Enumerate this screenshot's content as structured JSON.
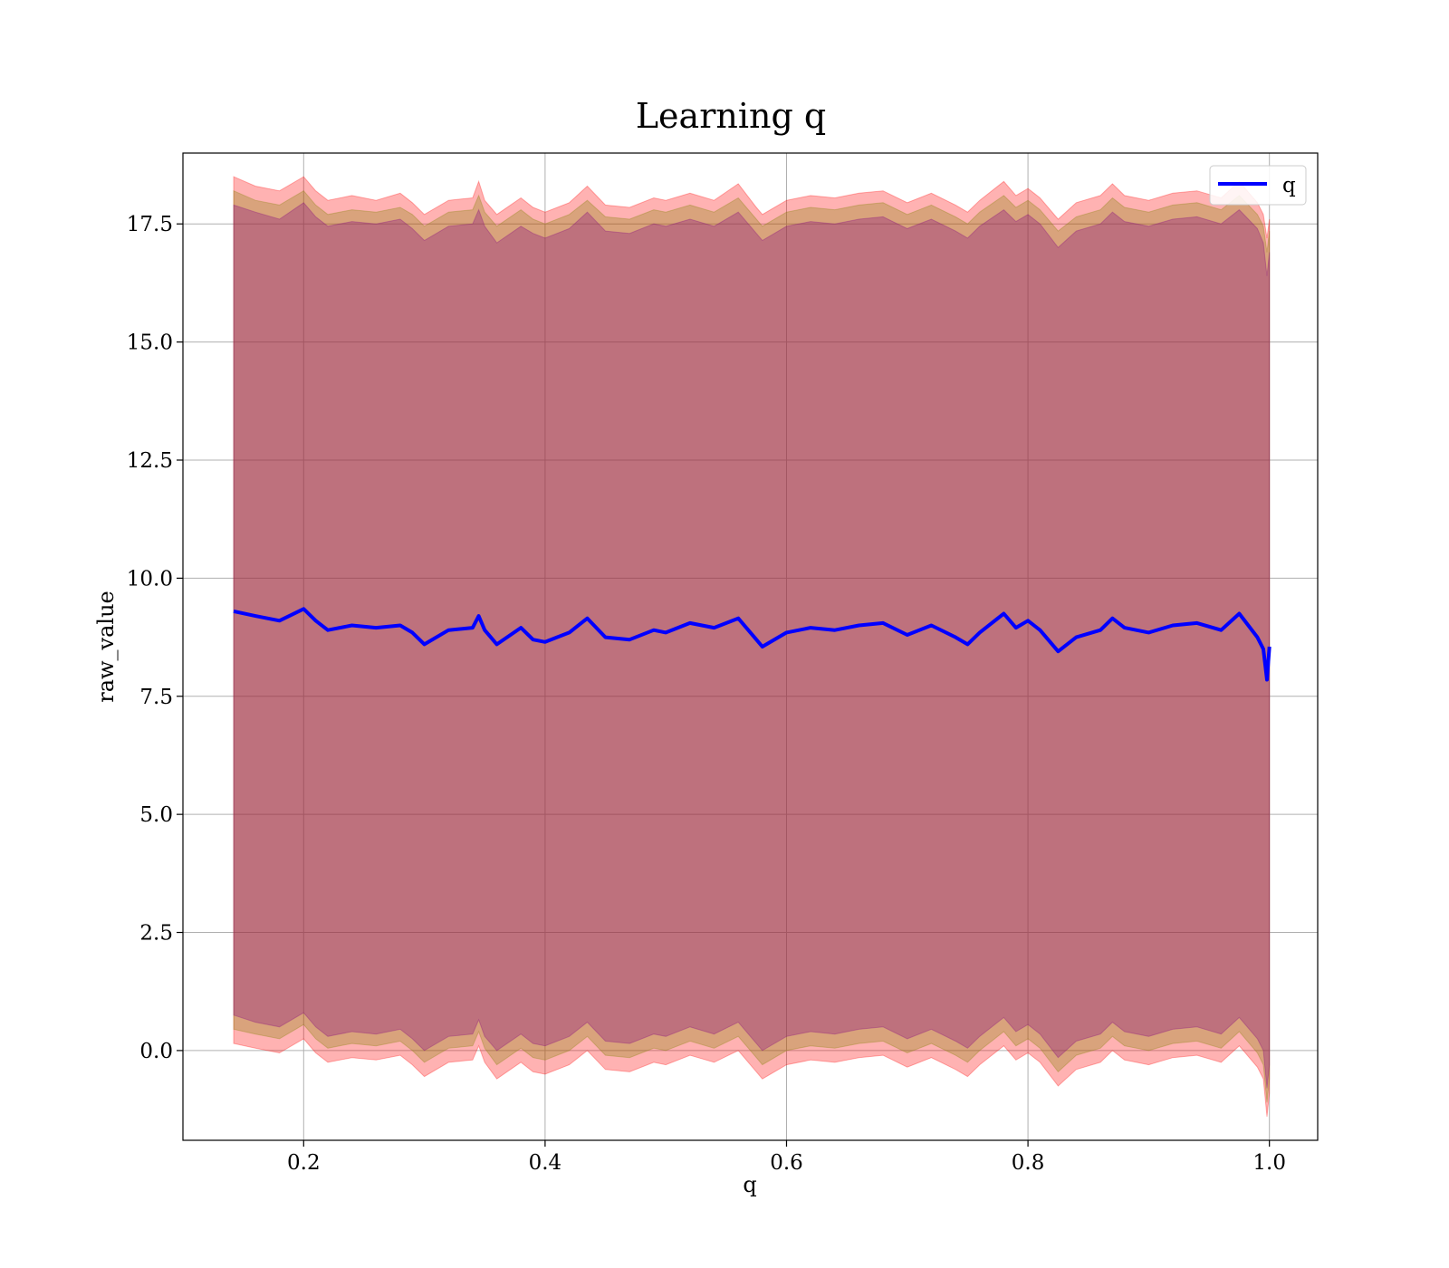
{
  "chart_data": {
    "type": "line",
    "title": "Learning q",
    "xlabel": "q",
    "ylabel": "raw_value",
    "xlim": [
      0.1,
      1.04
    ],
    "ylim": [
      -1.9,
      19.0
    ],
    "x_ticks": [
      0.2,
      0.4,
      0.6,
      0.8,
      1.0
    ],
    "x_tick_labels": [
      "0.2",
      "0.4",
      "0.6",
      "0.8",
      "1.0"
    ],
    "y_ticks": [
      0.0,
      2.5,
      5.0,
      7.5,
      10.0,
      12.5,
      15.0,
      17.5
    ],
    "y_tick_labels": [
      "0.0",
      "2.5",
      "5.0",
      "7.5",
      "10.0",
      "12.5",
      "15.0",
      "17.5"
    ],
    "grid": true,
    "legend_position": "top-right",
    "series": [
      {
        "name": "q",
        "color": "#0000ff",
        "x": [
          0.142,
          0.16,
          0.18,
          0.2,
          0.21,
          0.22,
          0.24,
          0.26,
          0.28,
          0.29,
          0.3,
          0.32,
          0.34,
          0.345,
          0.35,
          0.36,
          0.38,
          0.39,
          0.4,
          0.42,
          0.435,
          0.45,
          0.47,
          0.49,
          0.5,
          0.52,
          0.54,
          0.56,
          0.575,
          0.58,
          0.6,
          0.62,
          0.64,
          0.66,
          0.68,
          0.7,
          0.72,
          0.74,
          0.75,
          0.76,
          0.78,
          0.79,
          0.8,
          0.81,
          0.825,
          0.84,
          0.86,
          0.87,
          0.88,
          0.9,
          0.92,
          0.94,
          0.96,
          0.975,
          0.99,
          0.995,
          0.998,
          1.0
        ],
        "y": [
          9.3,
          9.2,
          9.1,
          9.35,
          9.1,
          8.9,
          9.0,
          8.95,
          9.0,
          8.85,
          8.6,
          8.9,
          8.95,
          9.2,
          8.9,
          8.6,
          8.95,
          8.7,
          8.65,
          8.85,
          9.15,
          8.75,
          8.7,
          8.9,
          8.85,
          9.05,
          8.95,
          9.15,
          8.7,
          8.55,
          8.85,
          8.95,
          8.9,
          9.0,
          9.05,
          8.8,
          9.0,
          8.75,
          8.6,
          8.85,
          9.25,
          8.95,
          9.1,
          8.9,
          8.45,
          8.75,
          8.9,
          9.15,
          8.95,
          8.85,
          9.0,
          9.05,
          8.9,
          9.25,
          8.75,
          8.5,
          7.85,
          8.55
        ]
      }
    ],
    "bands": [
      {
        "color": "#ff0000",
        "opacity": 0.3,
        "x": [
          0.142,
          0.16,
          0.18,
          0.2,
          0.21,
          0.22,
          0.24,
          0.26,
          0.28,
          0.29,
          0.3,
          0.32,
          0.34,
          0.345,
          0.35,
          0.36,
          0.38,
          0.39,
          0.4,
          0.42,
          0.435,
          0.45,
          0.47,
          0.49,
          0.5,
          0.52,
          0.54,
          0.56,
          0.575,
          0.58,
          0.6,
          0.62,
          0.64,
          0.66,
          0.68,
          0.7,
          0.72,
          0.74,
          0.75,
          0.76,
          0.78,
          0.79,
          0.8,
          0.81,
          0.825,
          0.84,
          0.86,
          0.87,
          0.88,
          0.9,
          0.92,
          0.94,
          0.96,
          0.975,
          0.99,
          0.995,
          0.998,
          1.0
        ],
        "upper": [
          18.5,
          18.3,
          18.2,
          18.5,
          18.2,
          18.0,
          18.1,
          18.0,
          18.15,
          17.95,
          17.7,
          18.0,
          18.05,
          18.4,
          18.0,
          17.7,
          18.05,
          17.85,
          17.75,
          17.95,
          18.3,
          17.9,
          17.85,
          18.05,
          18.0,
          18.15,
          18.0,
          18.35,
          17.85,
          17.7,
          18.0,
          18.1,
          18.05,
          18.15,
          18.2,
          17.95,
          18.15,
          17.9,
          17.75,
          18.0,
          18.4,
          18.1,
          18.25,
          18.05,
          17.6,
          17.95,
          18.1,
          18.35,
          18.1,
          18.0,
          18.15,
          18.2,
          18.05,
          18.4,
          17.95,
          17.7,
          17.2,
          17.6
        ],
        "lower": [
          0.15,
          0.05,
          -0.05,
          0.25,
          -0.05,
          -0.25,
          -0.15,
          -0.2,
          -0.1,
          -0.3,
          -0.55,
          -0.25,
          -0.2,
          0.1,
          -0.25,
          -0.6,
          -0.25,
          -0.45,
          -0.5,
          -0.3,
          0.0,
          -0.4,
          -0.45,
          -0.25,
          -0.3,
          -0.1,
          -0.25,
          0.0,
          -0.45,
          -0.6,
          -0.3,
          -0.2,
          -0.25,
          -0.15,
          -0.1,
          -0.35,
          -0.15,
          -0.4,
          -0.55,
          -0.3,
          0.1,
          -0.2,
          -0.05,
          -0.25,
          -0.75,
          -0.4,
          -0.25,
          0.0,
          -0.2,
          -0.3,
          -0.15,
          -0.1,
          -0.25,
          0.1,
          -0.35,
          -0.6,
          -1.4,
          -0.9
        ]
      },
      {
        "color": "#808000",
        "opacity": 0.3,
        "x": [
          0.142,
          0.16,
          0.18,
          0.2,
          0.21,
          0.22,
          0.24,
          0.26,
          0.28,
          0.29,
          0.3,
          0.32,
          0.34,
          0.345,
          0.35,
          0.36,
          0.38,
          0.39,
          0.4,
          0.42,
          0.435,
          0.45,
          0.47,
          0.49,
          0.5,
          0.52,
          0.54,
          0.56,
          0.575,
          0.58,
          0.6,
          0.62,
          0.64,
          0.66,
          0.68,
          0.7,
          0.72,
          0.74,
          0.75,
          0.76,
          0.78,
          0.79,
          0.8,
          0.81,
          0.825,
          0.84,
          0.86,
          0.87,
          0.88,
          0.9,
          0.92,
          0.94,
          0.96,
          0.975,
          0.99,
          0.995,
          0.998,
          1.0
        ],
        "upper": [
          18.2,
          18.0,
          17.9,
          18.2,
          17.9,
          17.7,
          17.8,
          17.75,
          17.85,
          17.7,
          17.45,
          17.75,
          17.8,
          18.1,
          17.75,
          17.45,
          17.8,
          17.6,
          17.5,
          17.7,
          18.0,
          17.65,
          17.6,
          17.8,
          17.75,
          17.9,
          17.75,
          18.05,
          17.6,
          17.45,
          17.75,
          17.85,
          17.8,
          17.9,
          17.95,
          17.7,
          17.9,
          17.65,
          17.5,
          17.75,
          18.1,
          17.85,
          18.0,
          17.8,
          17.35,
          17.65,
          17.8,
          18.05,
          17.85,
          17.75,
          17.9,
          17.95,
          17.8,
          18.1,
          17.7,
          17.45,
          16.9,
          17.35
        ],
        "lower": [
          0.45,
          0.35,
          0.25,
          0.55,
          0.25,
          0.05,
          0.15,
          0.1,
          0.2,
          0.0,
          -0.25,
          0.05,
          0.1,
          0.4,
          0.05,
          -0.3,
          0.05,
          -0.15,
          -0.2,
          0.0,
          0.3,
          -0.1,
          -0.15,
          0.05,
          0.0,
          0.2,
          0.05,
          0.3,
          -0.15,
          -0.3,
          0.0,
          0.1,
          0.05,
          0.15,
          0.2,
          -0.05,
          0.15,
          -0.1,
          -0.25,
          0.0,
          0.4,
          0.1,
          0.25,
          0.05,
          -0.45,
          -0.1,
          0.05,
          0.3,
          0.1,
          0.0,
          0.15,
          0.2,
          0.05,
          0.4,
          -0.05,
          -0.3,
          -1.1,
          -0.6
        ]
      },
      {
        "color": "#800080",
        "opacity": 0.3,
        "x": [
          0.142,
          0.16,
          0.18,
          0.2,
          0.21,
          0.22,
          0.24,
          0.26,
          0.28,
          0.29,
          0.3,
          0.32,
          0.34,
          0.345,
          0.35,
          0.36,
          0.38,
          0.39,
          0.4,
          0.42,
          0.435,
          0.45,
          0.47,
          0.49,
          0.5,
          0.52,
          0.54,
          0.56,
          0.575,
          0.58,
          0.6,
          0.62,
          0.64,
          0.66,
          0.68,
          0.7,
          0.72,
          0.74,
          0.75,
          0.76,
          0.78,
          0.79,
          0.8,
          0.81,
          0.825,
          0.84,
          0.86,
          0.87,
          0.88,
          0.9,
          0.92,
          0.94,
          0.96,
          0.975,
          0.99,
          0.995,
          0.998,
          1.0
        ],
        "upper": [
          17.9,
          17.75,
          17.6,
          17.95,
          17.65,
          17.45,
          17.55,
          17.5,
          17.6,
          17.4,
          17.15,
          17.45,
          17.5,
          17.8,
          17.45,
          17.1,
          17.45,
          17.3,
          17.2,
          17.4,
          17.75,
          17.35,
          17.3,
          17.5,
          17.45,
          17.6,
          17.45,
          17.75,
          17.3,
          17.15,
          17.45,
          17.55,
          17.5,
          17.6,
          17.65,
          17.4,
          17.6,
          17.35,
          17.2,
          17.45,
          17.8,
          17.55,
          17.7,
          17.5,
          17.0,
          17.35,
          17.5,
          17.75,
          17.55,
          17.45,
          17.6,
          17.65,
          17.5,
          17.8,
          17.4,
          17.1,
          16.4,
          16.9
        ],
        "lower": [
          0.75,
          0.6,
          0.5,
          0.8,
          0.5,
          0.3,
          0.4,
          0.35,
          0.45,
          0.25,
          0.0,
          0.3,
          0.35,
          0.65,
          0.3,
          0.0,
          0.35,
          0.15,
          0.1,
          0.3,
          0.6,
          0.2,
          0.15,
          0.35,
          0.3,
          0.5,
          0.35,
          0.6,
          0.15,
          0.0,
          0.3,
          0.4,
          0.35,
          0.45,
          0.5,
          0.25,
          0.45,
          0.2,
          0.05,
          0.3,
          0.7,
          0.4,
          0.55,
          0.35,
          -0.15,
          0.2,
          0.35,
          0.6,
          0.4,
          0.3,
          0.45,
          0.5,
          0.35,
          0.7,
          0.25,
          0.0,
          -0.8,
          -0.3
        ]
      }
    ]
  }
}
